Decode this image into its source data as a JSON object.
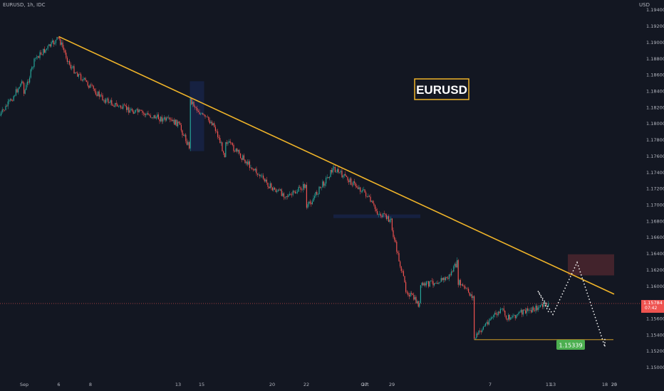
{
  "header": {
    "symbol_line": "EURUSD, 1h, IDC",
    "currency": "USD"
  },
  "annotation": {
    "label": "EURUSD",
    "target_price": "1.15339"
  },
  "price_axis": {
    "ticks": [
      "1.19400",
      "1.19200",
      "1.19000",
      "1.18800",
      "1.18600",
      "1.18400",
      "1.18200",
      "1.18000",
      "1.17800",
      "1.17600",
      "1.17400",
      "1.17200",
      "1.17000",
      "1.16800",
      "1.16600",
      "1.16400",
      "1.16200",
      "1.16000",
      "1.15800",
      "1.15600",
      "1.15400",
      "1.15200",
      "1.15000"
    ],
    "current_price": "1.15784",
    "countdown": "07:42"
  },
  "time_axis": {
    "labels": [
      "Sep",
      "6",
      "8",
      "13",
      "15",
      "20",
      "22",
      "27",
      "29",
      "Oct",
      "7",
      "11",
      "13",
      "18",
      "20",
      "25"
    ]
  },
  "colors": {
    "background": "#131722",
    "up": "#26a69a",
    "down": "#ef5350",
    "trendline": "#f0b429",
    "projection": "#ffffff",
    "target_badge": "#4caf50"
  },
  "chart_data": {
    "type": "candlestick",
    "symbol": "EURUSD",
    "timeframe": "1h",
    "y_range": [
      1.149,
      1.1952
    ],
    "price_path": [
      [
        "Sep 1",
        1.181
      ],
      [
        "Sep 2",
        1.183
      ],
      [
        "Sep 3",
        1.1855
      ],
      [
        "Sep 3",
        1.1835
      ],
      [
        "Sep 4",
        1.188
      ],
      [
        "Sep 6",
        1.1905
      ],
      [
        "Sep 7",
        1.187
      ],
      [
        "Sep 8",
        1.1845
      ],
      [
        "Sep 9",
        1.183
      ],
      [
        "Sep 10",
        1.182
      ],
      [
        "Sep 13",
        1.18
      ],
      [
        "Sep 14",
        1.177
      ],
      [
        "Sep 14",
        1.183
      ],
      [
        "Sep 15",
        1.181
      ],
      [
        "Sep 16",
        1.18
      ],
      [
        "Sep 17",
        1.176
      ],
      [
        "Sep 17",
        1.178
      ],
      [
        "Sep 20",
        1.172
      ],
      [
        "Sep 21",
        1.171
      ],
      [
        "Sep 22",
        1.1725
      ],
      [
        "Sep 23",
        1.173
      ],
      [
        "Sep 23",
        1.169
      ],
      [
        "Sep 24",
        1.1745
      ],
      [
        "Sep 27",
        1.1715
      ],
      [
        "Sep 28",
        1.169
      ],
      [
        "Sep 29",
        1.168
      ],
      [
        "Sep 29",
        1.167
      ],
      [
        "Sep 30",
        1.1595
      ],
      [
        "Oct 1",
        1.1575
      ],
      [
        "Oct 1",
        1.16
      ],
      [
        "Oct 4",
        1.161
      ],
      [
        "Oct 5",
        1.163
      ],
      [
        "Oct 5",
        1.1605
      ],
      [
        "Oct 6",
        1.1585
      ],
      [
        "Oct 6",
        1.1535
      ],
      [
        "Oct 7",
        1.156
      ],
      [
        "Oct 8",
        1.1572
      ],
      [
        "Oct 8",
        1.156
      ],
      [
        "Oct 11",
        1.1578
      ]
    ],
    "trendline": {
      "from": [
        "Sep 6",
        1.1907
      ],
      "to": [
        "Oct 25",
        1.159
      ]
    },
    "resistance_zone": {
      "from": "Oct 14",
      "to": "Oct 19",
      "low": 1.1613,
      "high": 1.1639
    },
    "support_zones": [
      {
        "from": "Sep 14",
        "to": "Sep 15",
        "low": 1.1766,
        "high": 1.1852
      },
      {
        "from": "Sep 24",
        "to": "Oct 1",
        "low": 1.1684,
        "high": 1.1688
      }
    ],
    "target_line": {
      "from": "Oct 6",
      "to": "Oct 18",
      "value": 1.15339
    },
    "projection_path": [
      [
        "Oct 11",
        1.1568
      ],
      [
        "Oct 12",
        1.1594
      ],
      [
        "Oct 13",
        1.1565
      ],
      [
        "Oct 15",
        1.1629
      ],
      [
        "Oct 17",
        1.156
      ],
      [
        "Oct 18",
        1.1525
      ],
      [
        "Oct 18",
        1.1535
      ]
    ]
  }
}
